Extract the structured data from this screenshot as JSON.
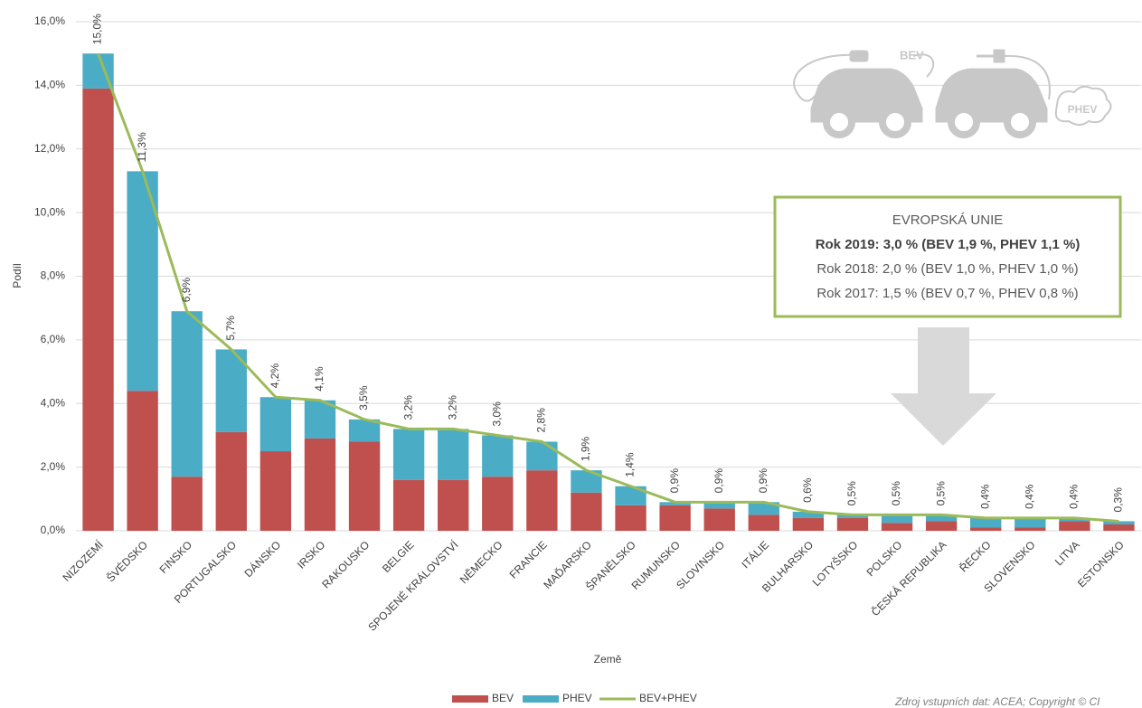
{
  "chart_data": {
    "type": "bar",
    "stacked": true,
    "y_label": "Podíl",
    "x_label": "Země",
    "categories": [
      "NIZOZEMÍ",
      "ŠVÉDSKO",
      "FINSKO",
      "PORTUGALSKO",
      "DÁNSKO",
      "IRSKO",
      "RAKOUSKO",
      "BELGIE",
      "SPOJENÉ KRÁLOVSTVÍ",
      "NĚMECKO",
      "FRANCIE",
      "MAĎARSKO",
      "ŠPANĚLSKO",
      "RUMUNSKO",
      "SLOVINSKO",
      "ITÁLIE",
      "BULHARSKO",
      "LOTYŠSKO",
      "POLSKO",
      "ČESKÁ REPUBLIKA",
      "ŘECKO",
      "SLOVENSKO",
      "LITVA",
      "ESTONSKO"
    ],
    "series": [
      {
        "name": "BEV",
        "color": "#c0504d",
        "values": [
          13.9,
          4.4,
          1.7,
          3.1,
          2.5,
          2.9,
          2.8,
          1.6,
          1.6,
          1.7,
          1.9,
          1.2,
          0.8,
          0.8,
          0.7,
          0.5,
          0.4,
          0.4,
          0.25,
          0.3,
          0.1,
          0.1,
          0.3,
          0.2
        ]
      },
      {
        "name": "PHEV",
        "color": "#4bacc6",
        "values": [
          1.1,
          6.9,
          5.2,
          2.6,
          1.7,
          1.2,
          0.7,
          1.6,
          1.6,
          1.3,
          0.9,
          0.7,
          0.6,
          0.1,
          0.2,
          0.4,
          0.2,
          0.1,
          0.25,
          0.2,
          0.3,
          0.3,
          0.1,
          0.1
        ]
      },
      {
        "name": "BEV+PHEV",
        "type": "line",
        "color": "#9bbb59",
        "values": [
          15.0,
          11.3,
          6.9,
          5.7,
          4.2,
          4.1,
          3.5,
          3.2,
          3.2,
          3.0,
          2.8,
          1.9,
          1.4,
          0.9,
          0.9,
          0.9,
          0.6,
          0.5,
          0.5,
          0.5,
          0.4,
          0.4,
          0.4,
          0.3
        ],
        "value_labels": [
          "15,0%",
          "11,3%",
          "6,9%",
          "5,7%",
          "4,2%",
          "4,1%",
          "3,5%",
          "3,2%",
          "3,2%",
          "3,0%",
          "2,8%",
          "1,9%",
          "1,4%",
          "0,9%",
          "0,9%",
          "0,9%",
          "0,6%",
          "0,5%",
          "0,5%",
          "0,5%",
          "0,4%",
          "0,4%",
          "0,4%",
          "0,3%"
        ]
      }
    ],
    "ylim": [
      0,
      16
    ],
    "yticks": [
      {
        "value": 0,
        "label": "0,0%"
      },
      {
        "value": 2,
        "label": "2,0%"
      },
      {
        "value": 4,
        "label": "4,0%"
      },
      {
        "value": 6,
        "label": "6,0%"
      },
      {
        "value": 8,
        "label": "8,0%"
      },
      {
        "value": 10,
        "label": "10,0%"
      },
      {
        "value": 12,
        "label": "12,0%"
      },
      {
        "value": 14,
        "label": "14,0%"
      },
      {
        "value": 16,
        "label": "16,0%"
      }
    ],
    "grid": true,
    "annotation": [
      "EVROPSKÁ UNIE",
      "Rok 2019: 3,0 % (BEV 1,9 %, PHEV 1,1 %)",
      "Rok 2018: 2,0 % (BEV 1,0 %, PHEV 1,0 %)",
      "Rok 2017: 1,5 % (BEV 0,7 %, PHEV 0,8 %)"
    ],
    "icon_labels": [
      "BEV",
      "PHEV"
    ],
    "source": "Zdroj vstupních dat: ACEA; Copyright © CI"
  }
}
